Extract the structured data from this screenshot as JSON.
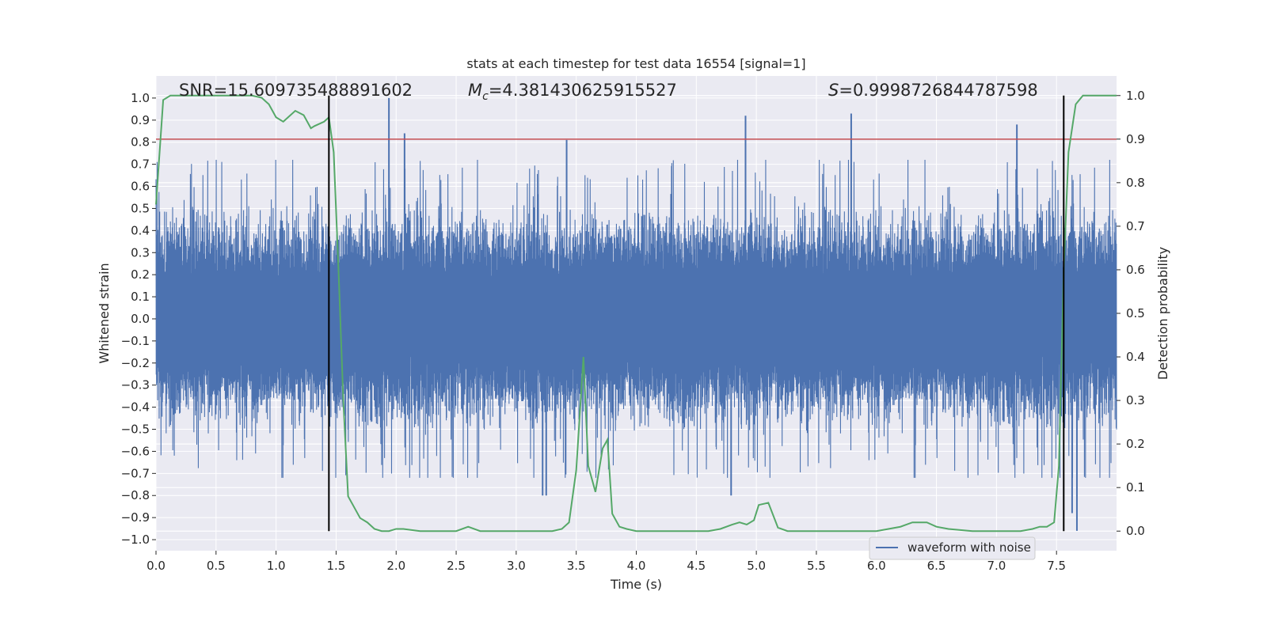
{
  "chart_data": {
    "type": "line",
    "title": "stats at each timestep for test data 16554 [signal=1]",
    "xlabel": "Time (s)",
    "ylabel": "Whitened strain",
    "y2label": "Detection probability",
    "xlim": [
      0.0,
      8.0
    ],
    "ylim": [
      -1.05,
      1.1
    ],
    "y2lim": [
      -0.045,
      1.045
    ],
    "x_ticks": [
      0.0,
      0.5,
      1.0,
      1.5,
      2.0,
      2.5,
      3.0,
      3.5,
      4.0,
      4.5,
      5.0,
      5.5,
      6.0,
      6.5,
      7.0,
      7.5
    ],
    "x_tick_labels": [
      "0.0",
      "0.5",
      "1.0",
      "1.5",
      "2.0",
      "2.5",
      "3.0",
      "3.5",
      "4.0",
      "4.5",
      "5.0",
      "5.5",
      "6.0",
      "6.5",
      "7.0",
      "7.5"
    ],
    "y_ticks": [
      -1.0,
      -0.9,
      -0.8,
      -0.7,
      -0.6,
      -0.5,
      -0.4,
      -0.3,
      -0.2,
      -0.1,
      0.0,
      0.1,
      0.2,
      0.3,
      0.4,
      0.5,
      0.6,
      0.7,
      0.8,
      0.9,
      1.0
    ],
    "y_tick_labels": [
      "−1.0",
      "−0.9",
      "−0.8",
      "−0.7",
      "−0.6",
      "−0.5",
      "−0.4",
      "−0.3",
      "−0.2",
      "−0.1",
      "0.0",
      "0.1",
      "0.2",
      "0.3",
      "0.4",
      "0.5",
      "0.6",
      "0.7",
      "0.8",
      "0.9",
      "1.0"
    ],
    "y2_ticks": [
      0.0,
      0.1,
      0.2,
      0.3,
      0.4,
      0.5,
      0.6,
      0.7,
      0.8,
      0.9,
      1.0
    ],
    "y2_tick_labels": [
      "0.0",
      "0.1",
      "0.2",
      "0.3",
      "0.4",
      "0.5",
      "0.6",
      "0.7",
      "0.8",
      "0.9",
      "1.0"
    ],
    "annotations": {
      "snr": "SNR=15.609735488891602",
      "mc_symbol": "M",
      "mc_subscript": "c",
      "mc_value": "=4.381430625915527",
      "s_symbol": "S",
      "s_value": "=0.9998726844787598"
    },
    "legend": {
      "location": "lower-right",
      "entries": [
        "waveform with noise"
      ]
    },
    "colors": {
      "waveform": "#4c72b0",
      "probability": "#55a868",
      "threshold": "#c44e52",
      "markers": "#000000",
      "background": "#eaeaf2",
      "grid": "#ffffff"
    },
    "waveform": {
      "name": "waveform with noise",
      "x_range": [
        0.0,
        8.0
      ],
      "peak_ticks": [
        {
          "t": 1.94,
          "v": 1.0
        },
        {
          "t": 2.07,
          "v": 0.84
        },
        {
          "t": 3.42,
          "v": 0.81
        },
        {
          "t": 4.91,
          "v": 0.92
        },
        {
          "t": 5.79,
          "v": 0.93
        },
        {
          "t": 7.17,
          "v": 0.88
        },
        {
          "t": 3.22,
          "v": -0.8
        },
        {
          "t": 3.25,
          "v": -0.8
        },
        {
          "t": 4.79,
          "v": -0.8
        },
        {
          "t": 7.67,
          "v": -0.96
        },
        {
          "t": 7.63,
          "v": -0.88
        }
      ]
    },
    "detection_probability": {
      "name": "Detection probability",
      "x": [
        0.0,
        0.06,
        0.12,
        0.2,
        0.3,
        0.4,
        0.5,
        0.6,
        0.7,
        0.8,
        0.88,
        0.94,
        1.0,
        1.06,
        1.1,
        1.16,
        1.23,
        1.29,
        1.32,
        1.4,
        1.44,
        1.48,
        1.52,
        1.56,
        1.6,
        1.64,
        1.7,
        1.76,
        1.82,
        1.88,
        1.94,
        2.0,
        2.06,
        2.2,
        2.3,
        2.4,
        2.5,
        2.6,
        2.7,
        2.8,
        2.9,
        3.0,
        3.1,
        3.2,
        3.3,
        3.38,
        3.44,
        3.5,
        3.56,
        3.6,
        3.66,
        3.72,
        3.76,
        3.8,
        3.86,
        3.92,
        4.0,
        4.2,
        4.4,
        4.6,
        4.7,
        4.8,
        4.86,
        4.92,
        4.98,
        5.02,
        5.1,
        5.18,
        5.26,
        5.4,
        5.6,
        5.8,
        6.0,
        6.2,
        6.3,
        6.42,
        6.5,
        6.6,
        6.8,
        7.0,
        7.2,
        7.3,
        7.36,
        7.42,
        7.48,
        7.52,
        7.56,
        7.6,
        7.66,
        7.72,
        7.8,
        8.0
      ],
      "values": [
        0.75,
        0.99,
        1.0,
        1.0,
        1.0,
        1.0,
        1.0,
        1.0,
        1.0,
        1.0,
        0.995,
        0.98,
        0.95,
        0.94,
        0.95,
        0.965,
        0.955,
        0.925,
        0.93,
        0.94,
        0.95,
        0.87,
        0.6,
        0.3,
        0.08,
        0.06,
        0.03,
        0.02,
        0.005,
        0.0,
        0.0,
        0.005,
        0.005,
        0.0,
        0.0,
        0.0,
        0.0,
        0.01,
        0.0,
        0.0,
        0.0,
        0.0,
        0.0,
        0.0,
        0.0,
        0.005,
        0.02,
        0.14,
        0.4,
        0.15,
        0.09,
        0.19,
        0.21,
        0.04,
        0.01,
        0.005,
        0.0,
        0.0,
        0.0,
        0.0,
        0.005,
        0.015,
        0.02,
        0.015,
        0.025,
        0.06,
        0.065,
        0.008,
        0.0,
        0.0,
        0.0,
        0.0,
        0.0,
        0.01,
        0.02,
        0.02,
        0.01,
        0.005,
        0.0,
        0.0,
        0.0,
        0.005,
        0.01,
        0.01,
        0.02,
        0.15,
        0.6,
        0.87,
        0.98,
        1.0,
        1.0,
        1.0
      ]
    },
    "threshold": {
      "y2": 0.9
    },
    "vertical_markers": [
      1.44,
      7.56
    ]
  }
}
